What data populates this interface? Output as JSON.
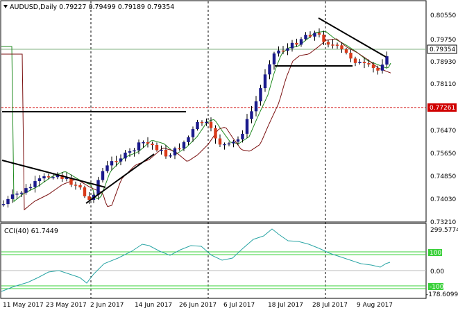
{
  "header": {
    "main_panel": "AUDUSD,Daily  0.79227 0.79499 0.79189 0.79354",
    "cci_panel": "CCI(40) 61.7449"
  },
  "price_axis": {
    "labels": [
      "0.80550",
      "0.79750",
      "0.78930",
      "0.78110",
      "0.77261",
      "0.76470",
      "0.75650",
      "0.74850",
      "0.74030",
      "0.73210"
    ],
    "current_price": "0.79354",
    "marked_level": "0.77261"
  },
  "cci_axis": {
    "labels": [
      "299.5774",
      "100",
      "0.00",
      "-100",
      "-178.6099"
    ]
  },
  "time_axis": {
    "labels": [
      "11 May 2017",
      "23 May 2017",
      "2 Jun 2017",
      "14 Jun 2017",
      "26 Jun 2017",
      "6 Jul 2017",
      "18 Jul 2017",
      "28 Jul 2017",
      "9 Aug 2017"
    ]
  },
  "colors": {
    "bull_candle": "#1a1a8c",
    "bear_candle": "#d93a1a",
    "ma_fast": "#1f8a1f",
    "ma_slow": "#7a0f0f",
    "cci_line": "#2aa5a5",
    "cci_levels": "#3ad03a",
    "price_marker": "#d00000"
  },
  "icons": {
    "collapse": "triangle-down-icon"
  }
}
